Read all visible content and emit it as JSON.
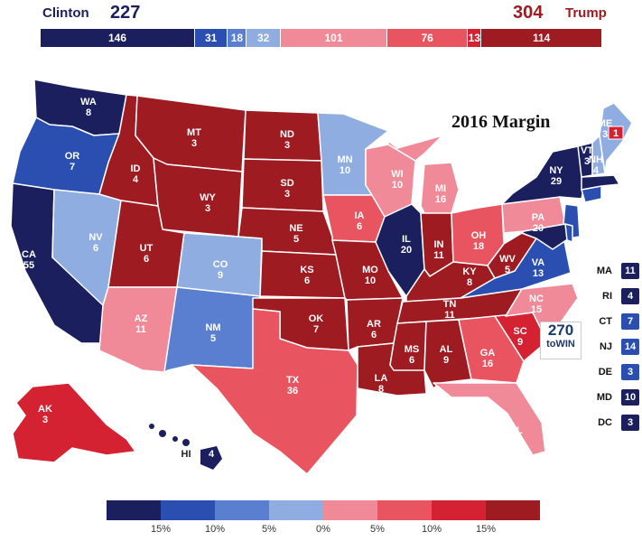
{
  "header": {
    "clinton_label": "Clinton",
    "clinton_total": "227",
    "trump_label": "Trump",
    "trump_total": "304"
  },
  "ev_bar": [
    {
      "value": "146",
      "color": "#1c1f5e",
      "ev": 146
    },
    {
      "value": "31",
      "color": "#2b4fb0",
      "ev": 31
    },
    {
      "value": "18",
      "color": "#5a7fd0",
      "ev": 18
    },
    {
      "value": "32",
      "color": "#8fade0",
      "ev": 32
    },
    {
      "value": "101",
      "color": "#f08a98",
      "ev": 101
    },
    {
      "value": "76",
      "color": "#e85560",
      "ev": 76
    },
    {
      "value": "13",
      "color": "#d42232",
      "ev": 13
    },
    {
      "value": "114",
      "color": "#9e1b22",
      "ev": 114
    }
  ],
  "map": {
    "title": "2016 Margin",
    "states": {
      "WA": "8",
      "OR": "7",
      "CA": "55",
      "NV": "6",
      "ID": "4",
      "MT": "3",
      "WY": "3",
      "UT": "6",
      "AZ": "11",
      "CO": "9",
      "NM": "5",
      "ND": "3",
      "SD": "3",
      "NE": "5",
      "KS": "6",
      "OK": "7",
      "TX": "36",
      "MN": "10",
      "IA": "6",
      "MO": "10",
      "AR": "6",
      "LA": "8",
      "WI": "10",
      "IL": "20",
      "MI": "16",
      "IN": "11",
      "OH": "18",
      "KY": "8",
      "TN": "11",
      "MS": "6",
      "AL": "9",
      "GA": "16",
      "FL": "29",
      "SC": "9",
      "NC": "15",
      "VA": "13",
      "WV": "5",
      "PA": "20",
      "NY": "29",
      "VT": "3",
      "NH": "4",
      "ME": "3",
      "ME2": "1",
      "AK": "3",
      "HI": "4"
    },
    "abbr": {
      "WA": "WA",
      "OR": "OR",
      "CA": "CA",
      "NV": "NV",
      "ID": "ID",
      "MT": "MT",
      "WY": "WY",
      "UT": "UT",
      "AZ": "AZ",
      "CO": "CO",
      "NM": "NM",
      "ND": "ND",
      "SD": "SD",
      "NE": "NE",
      "KS": "KS",
      "OK": "OK",
      "TX": "TX",
      "MN": "MN",
      "IA": "IA",
      "MO": "MO",
      "AR": "AR",
      "LA": "LA",
      "WI": "WI",
      "IL": "IL",
      "MI": "MI",
      "IN": "IN",
      "OH": "OH",
      "KY": "KY",
      "TN": "TN",
      "MS": "MS",
      "AL": "AL",
      "GA": "GA",
      "FL": "FL",
      "SC": "SC",
      "NC": "NC",
      "VA": "VA",
      "WV": "WV",
      "PA": "PA",
      "NY": "NY",
      "VT": "VT",
      "NH": "NH",
      "ME": "ME",
      "AK": "AK",
      "HI": "HI"
    }
  },
  "small_states": [
    {
      "abbr": "MA",
      "ev": "11",
      "color": "#1c1f5e"
    },
    {
      "abbr": "RI",
      "ev": "4",
      "color": "#1c1f5e"
    },
    {
      "abbr": "CT",
      "ev": "7",
      "color": "#2b4fb0"
    },
    {
      "abbr": "NJ",
      "ev": "14",
      "color": "#2b4fb0"
    },
    {
      "abbr": "DE",
      "ev": "3",
      "color": "#2b4fb0"
    },
    {
      "abbr": "MD",
      "ev": "10",
      "color": "#1c1f5e"
    },
    {
      "abbr": "DC",
      "ev": "3",
      "color": "#1c1f5e"
    }
  ],
  "logo": {
    "number": "270",
    "text": "toWIN"
  },
  "legend": {
    "colors": [
      "#1c1f5e",
      "#2b4fb0",
      "#5a7fd0",
      "#8fade0",
      "#f08a98",
      "#e85560",
      "#d42232",
      "#9e1b22"
    ],
    "labels": [
      "15%",
      "10%",
      "5%",
      "0%",
      "5%",
      "10%",
      "15%"
    ]
  },
  "colors": {
    "clinton": "#1c1f5e",
    "trump": "#9e1b22"
  }
}
